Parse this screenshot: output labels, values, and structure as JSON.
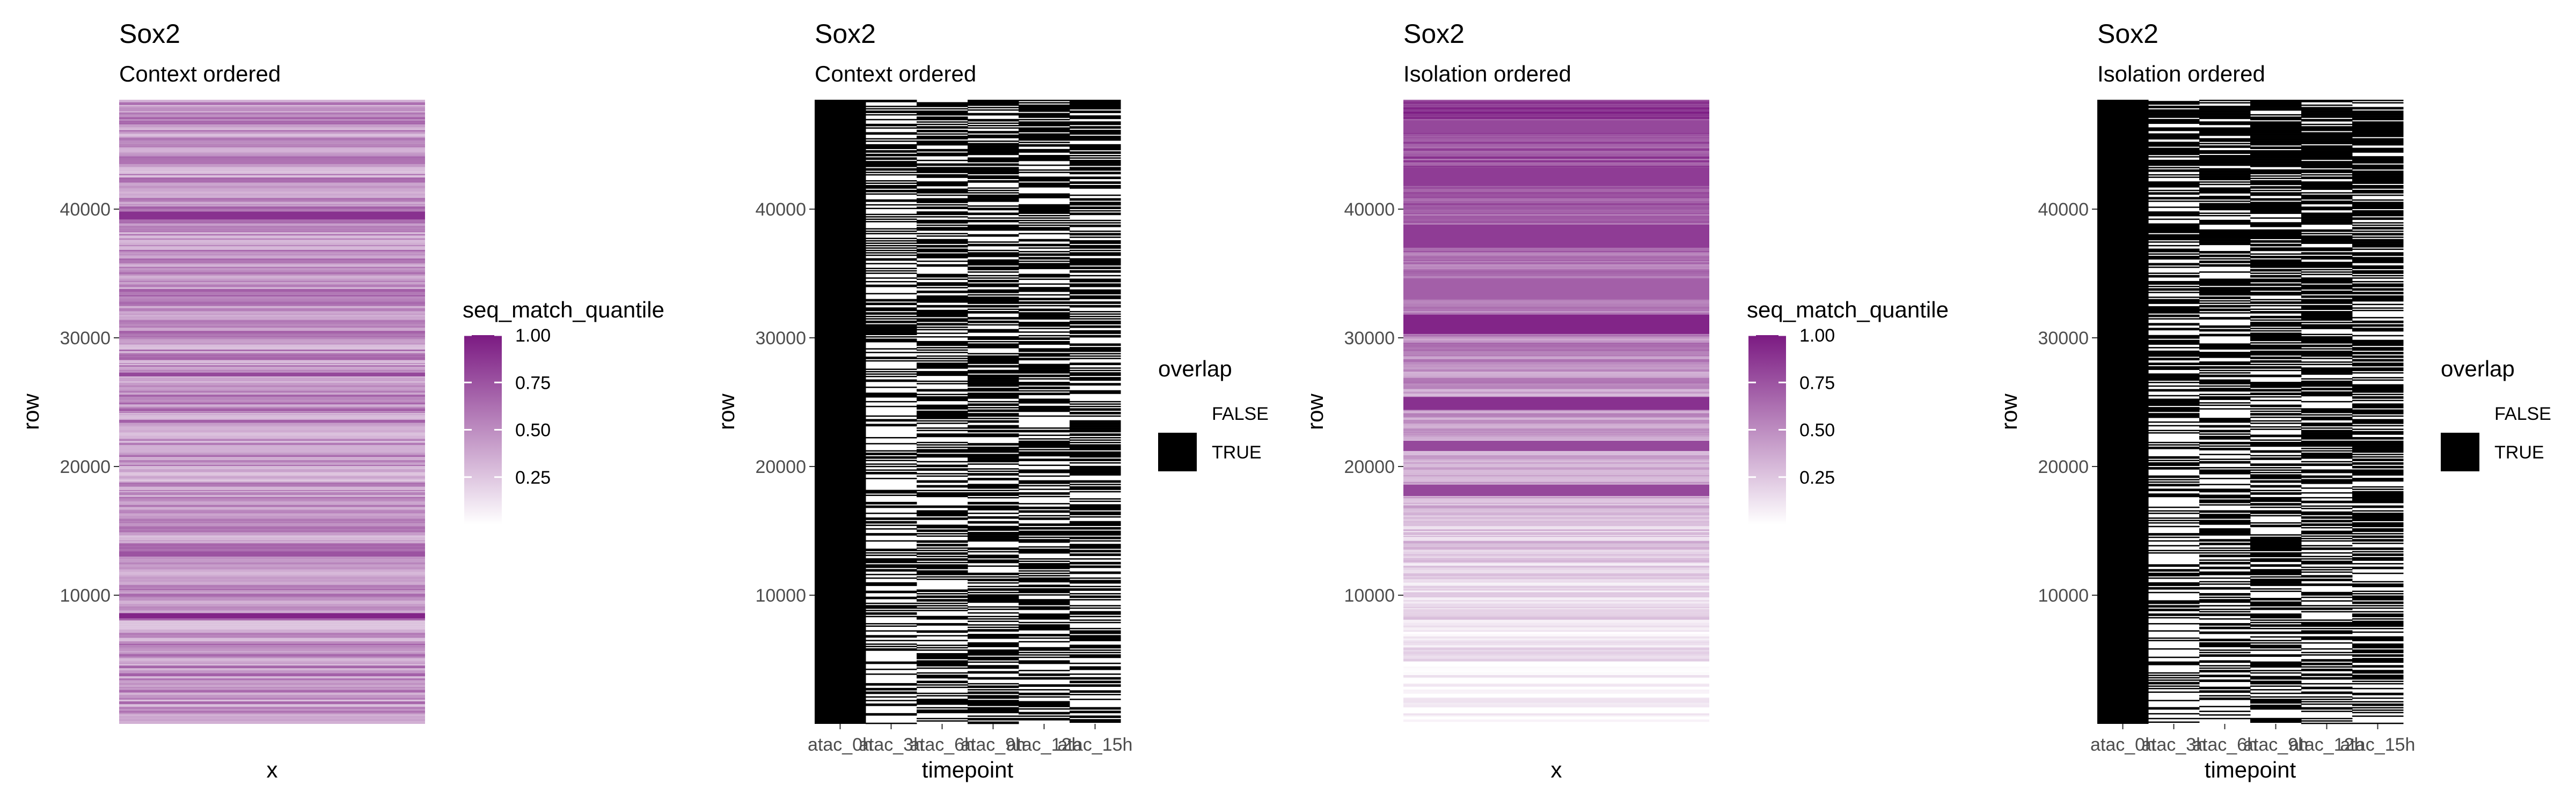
{
  "palette": {
    "purple_high": "#7b1a82",
    "purple_low": "#ffffff",
    "overlap_true": "#000000",
    "overlap_false": "#ffffff",
    "tick_text": "#4d4d4d",
    "tick_mark": "#333333",
    "title_text": "#000000"
  },
  "chart_data": [
    {
      "type": "heatmap",
      "title": "Sox2",
      "subtitle": "Context ordered",
      "xlabel": "x",
      "ylabel": "row",
      "ylim": [
        0,
        48500
      ],
      "y_ticks": [
        10000,
        20000,
        30000,
        40000
      ],
      "y_tick_labels": [
        "10000",
        "20000",
        "30000",
        "40000"
      ],
      "x_categories": [],
      "fill": "seq_match_quantile",
      "legend": {
        "title": "seq_match_quantile",
        "type": "colorbar",
        "range": [
          0,
          1
        ],
        "breaks": [
          1.0,
          0.75,
          0.5,
          0.25
        ],
        "labels": [
          "1.00",
          "0.75",
          "0.50",
          "0.25"
        ],
        "placement": "right"
      },
      "bands": [
        {
          "y": [
            8200,
            8600
          ],
          "value": 0.95
        },
        {
          "y": [
            39200,
            39800
          ],
          "value": 0.9
        },
        {
          "y": [
            13000,
            13400
          ],
          "value": 0.75
        },
        {
          "y": [
            27000,
            27300
          ],
          "value": 0.8
        }
      ]
    },
    {
      "type": "heatmap",
      "title": "Sox2",
      "subtitle": "Context ordered",
      "xlabel": "timepoint",
      "ylabel": "row",
      "ylim": [
        0,
        48500
      ],
      "y_ticks": [
        10000,
        20000,
        30000,
        40000
      ],
      "y_tick_labels": [
        "10000",
        "20000",
        "30000",
        "40000"
      ],
      "x_categories": [
        "atac_0h",
        "atac_3h",
        "atac_6h",
        "atac_9h",
        "atac_12h",
        "atac_15h"
      ],
      "true_fraction": [
        1.0,
        0.42,
        0.55,
        0.6,
        0.58,
        0.55
      ],
      "fill": "overlap",
      "legend": {
        "title": "overlap",
        "type": "discrete",
        "entries": [
          {
            "label": "FALSE",
            "value": false
          },
          {
            "label": "TRUE",
            "value": true
          }
        ],
        "placement": "right"
      }
    },
    {
      "type": "heatmap",
      "title": "Sox2",
      "subtitle": "Isolation ordered",
      "xlabel": "x",
      "ylabel": "row",
      "ylim": [
        0,
        48500
      ],
      "y_ticks": [
        10000,
        20000,
        30000,
        40000
      ],
      "y_tick_labels": [
        "10000",
        "20000",
        "30000",
        "40000"
      ],
      "x_categories": [],
      "fill": "seq_match_quantile",
      "legend": {
        "title": "seq_match_quantile",
        "type": "colorbar",
        "range": [
          0,
          1
        ],
        "breaks": [
          1.0,
          0.75,
          0.5,
          0.25
        ],
        "labels": [
          "1.00",
          "0.75",
          "0.50",
          "0.25"
        ],
        "placement": "right"
      },
      "bands": [
        {
          "y": [
            45900,
            46900
          ],
          "value": 0.8
        },
        {
          "y": [
            41800,
            43200
          ],
          "value": 0.85
        },
        {
          "y": [
            37000,
            38800
          ],
          "value": 0.85
        },
        {
          "y": [
            33000,
            34600
          ],
          "value": 0.7
        },
        {
          "y": [
            30300,
            31800
          ],
          "value": 0.95
        },
        {
          "y": [
            24400,
            25400
          ],
          "value": 0.9
        },
        {
          "y": [
            21200,
            22000
          ],
          "value": 0.8
        },
        {
          "y": [
            17700,
            18600
          ],
          "value": 0.8
        }
      ]
    },
    {
      "type": "heatmap",
      "title": "Sox2",
      "subtitle": "Isolation ordered",
      "xlabel": "timepoint",
      "ylabel": "row",
      "ylim": [
        0,
        48500
      ],
      "y_ticks": [
        10000,
        20000,
        30000,
        40000
      ],
      "y_tick_labels": [
        "10000",
        "20000",
        "30000",
        "40000"
      ],
      "x_categories": [
        "atac_0h",
        "atac_3h",
        "atac_6h",
        "atac_9h",
        "atac_12h",
        "atac_15h"
      ],
      "true_fraction": [
        1.0,
        0.48,
        0.55,
        0.6,
        0.66,
        0.64
      ],
      "fill": "overlap",
      "legend": {
        "title": "overlap",
        "type": "discrete",
        "entries": [
          {
            "label": "FALSE",
            "value": false
          },
          {
            "label": "TRUE",
            "value": true
          }
        ],
        "placement": "right"
      }
    }
  ]
}
